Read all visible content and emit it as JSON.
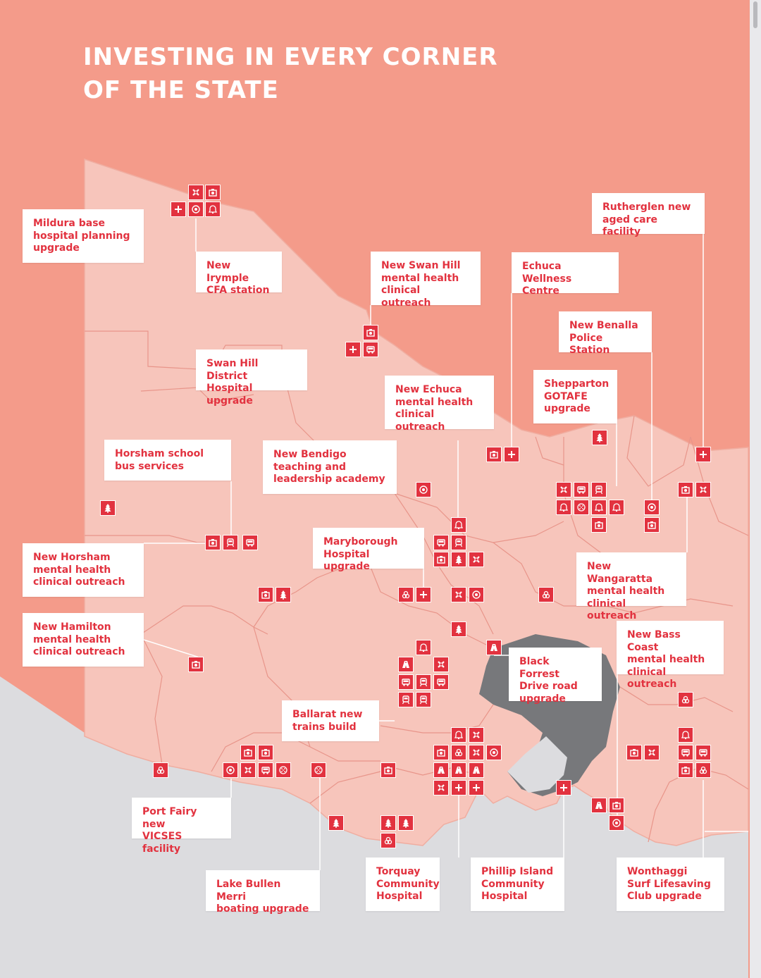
{
  "title": {
    "line1": "INVESTING IN EVERY CORNER",
    "line2": "OF THE STATE"
  },
  "colors": {
    "background_coral": "#f49b8a",
    "state_fill": "#f7c5bb",
    "region_border": "#e48a7a",
    "sea_grey": "#dcdcdf",
    "metro_grey": "#77787b",
    "icon_red": "#e2323f",
    "label_text": "#e2323f",
    "connector_line": "#ffffff"
  },
  "labels": [
    {
      "id": "mildura",
      "text": "Mildura base\nhospital planning\nupgrade"
    },
    {
      "id": "irymple",
      "text": "New Irymple\nCFA station"
    },
    {
      "id": "swanhill-mh",
      "text": "New Swan Hill\nmental health\nclinical outreach"
    },
    {
      "id": "echuca-wellness",
      "text": "Echuca Wellness\nCentre"
    },
    {
      "id": "rutherglen",
      "text": "Rutherglen new\naged care facility"
    },
    {
      "id": "benalla",
      "text": "New Benalla\nPolice Station"
    },
    {
      "id": "swanhill-hosp",
      "text": "Swan Hill District\nHospital upgrade"
    },
    {
      "id": "echuca-mh",
      "text": "New Echuca\nmental health\nclinical outreach"
    },
    {
      "id": "shepparton",
      "text": "Shepparton\nGOTAFE\nupgrade"
    },
    {
      "id": "horsham-bus",
      "text": "Horsham school\nbus services"
    },
    {
      "id": "bendigo",
      "text": "New Bendigo\nteaching and\nleadership academy"
    },
    {
      "id": "maryborough",
      "text": "Maryborough\nHospital upgrade"
    },
    {
      "id": "horsham-mh",
      "text": "New Horsham\nmental health\nclinical outreach"
    },
    {
      "id": "wangaratta",
      "text": "New Wangaratta\nmental health\nclinical outreach"
    },
    {
      "id": "hamilton",
      "text": "New Hamilton\nmental health\nclinical outreach"
    },
    {
      "id": "basscoast",
      "text": "New Bass Coast\nmental health\nclinical outreach"
    },
    {
      "id": "blackforrest",
      "text": "Black Forrest\nDrive road\nupgrade"
    },
    {
      "id": "ballarat",
      "text": "Ballarat new\ntrains build"
    },
    {
      "id": "portfairy",
      "text": "Port Fairy new\nVICSES facility"
    },
    {
      "id": "lakebullen",
      "text": "Lake Bullen Merri\nboating upgrade"
    },
    {
      "id": "torquay",
      "text": "Torquay\nCommunity\nHospital"
    },
    {
      "id": "phillip",
      "text": "Phillip Island\nCommunity\nHospital"
    },
    {
      "id": "wonthaggi",
      "text": "Wonthaggi\nSurf Lifesaving\nClub upgrade"
    }
  ],
  "icon_types": {
    "P": "hospital-plus-icon",
    "C": "camera-icon",
    "T": "target-icon",
    "B": "bell-icon",
    "X": "cross-tools-icon",
    "R": "train-icon",
    "U": "bus-icon",
    "E": "tree-icon",
    "K": "road-icon",
    "S": "stack-icon",
    "D": "dotted-ball-icon"
  }
}
